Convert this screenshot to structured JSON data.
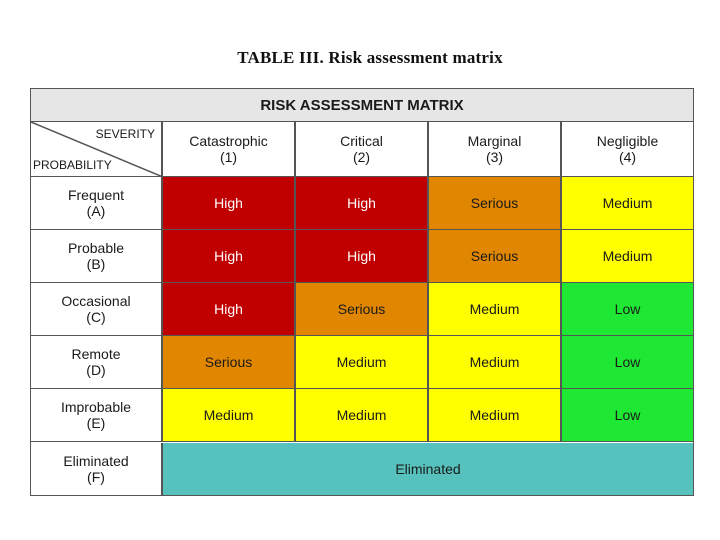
{
  "caption": "TABLE III.  Risk assessment matrix",
  "matrix": {
    "banner": "RISK ASSESSMENT MATRIX",
    "corner": {
      "severity_label": "SEVERITY",
      "probability_label": "PROBABILITY"
    },
    "columns": [
      {
        "name": "Catastrophic",
        "code": "(1)"
      },
      {
        "name": "Critical",
        "code": "(2)"
      },
      {
        "name": "Marginal",
        "code": "(3)"
      },
      {
        "name": "Negligible",
        "code": "(4)"
      }
    ],
    "rows": [
      {
        "name": "Frequent",
        "code": "(A)",
        "cells": [
          "High",
          "High",
          "Serious",
          "Medium"
        ]
      },
      {
        "name": "Probable",
        "code": "(B)",
        "cells": [
          "High",
          "High",
          "Serious",
          "Medium"
        ]
      },
      {
        "name": "Occasional",
        "code": "(C)",
        "cells": [
          "High",
          "Serious",
          "Medium",
          "Low"
        ]
      },
      {
        "name": "Remote",
        "code": "(D)",
        "cells": [
          "Serious",
          "Medium",
          "Medium",
          "Low"
        ]
      },
      {
        "name": "Improbable",
        "code": "(E)",
        "cells": [
          "Medium",
          "Medium",
          "Medium",
          "Low"
        ]
      },
      {
        "name": "Eliminated",
        "code": "(F)"
      }
    ],
    "eliminated_label": "Eliminated",
    "level_colors": {
      "High": "#c00000",
      "Serious": "#e08600",
      "Medium": "#ffff00",
      "Low": "#1ee834",
      "Eliminated": "#57c1bd"
    }
  }
}
